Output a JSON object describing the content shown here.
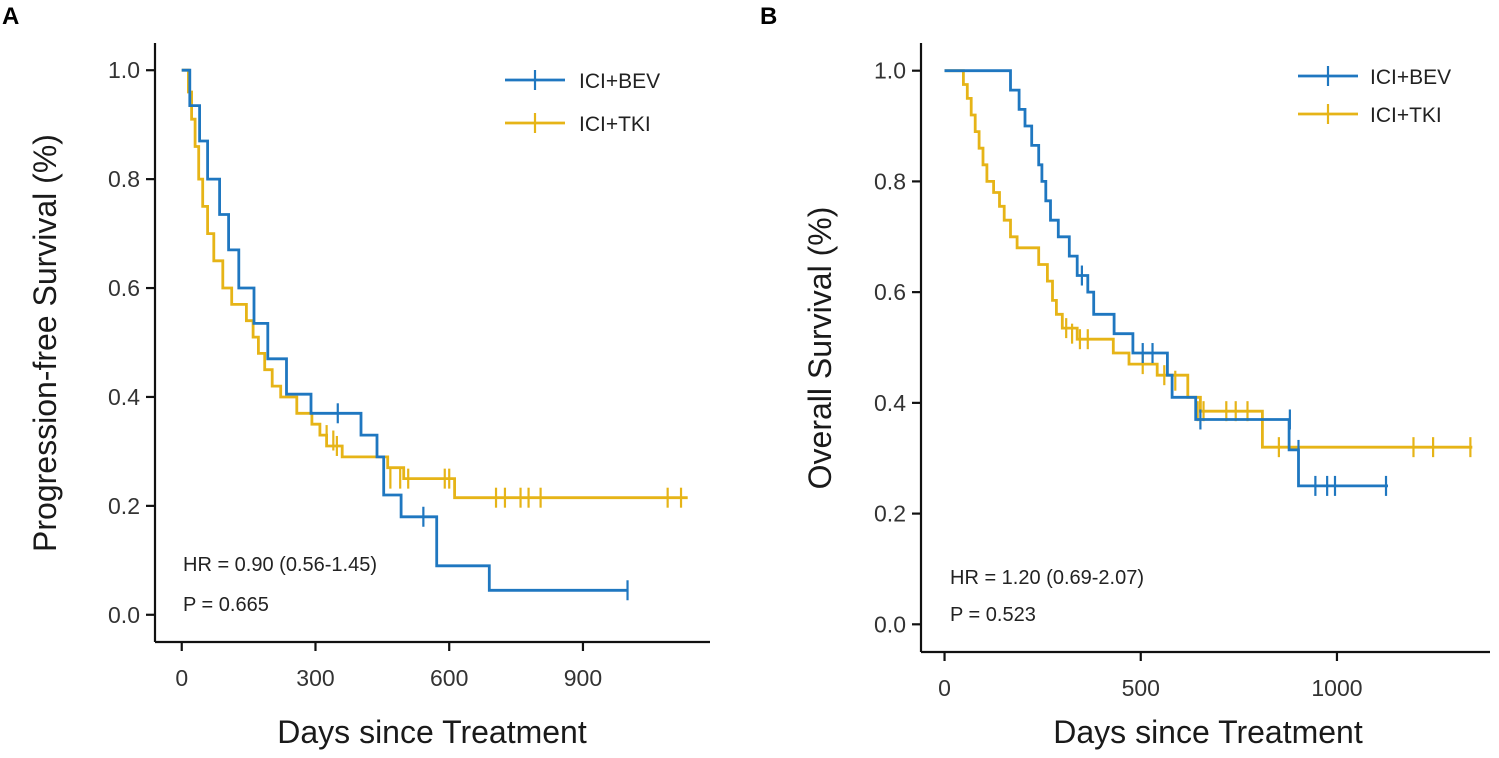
{
  "colors": {
    "bev": "#1f77c0",
    "tki": "#e6b417",
    "axis": "#111111"
  },
  "chart_data": [
    {
      "type": "line",
      "panel_label": "A",
      "title": "",
      "xlabel": "Days since Treatment",
      "ylabel": "Progression-free Survival (%)",
      "xlim": [
        -60,
        1185
      ],
      "ylim": [
        -0.05,
        1.05
      ],
      "xticks": [
        0,
        300,
        600,
        900
      ],
      "xtick_labels": [
        "0",
        "300",
        "600",
        "900"
      ],
      "yticks": [
        0.0,
        0.2,
        0.4,
        0.6,
        0.8,
        1.0
      ],
      "ytick_labels": [
        "0.0",
        "0.2",
        "0.4",
        "0.6",
        "0.8",
        "1.0"
      ],
      "legend_position": "top-right",
      "annotations": [
        "HR = 0.90 (0.56-1.45)",
        "P = 0.665"
      ],
      "series": [
        {
          "name": "ICI+BEV",
          "color": "#1f77c0",
          "steps": [
            [
              0,
              1.0
            ],
            [
              18,
              0.935
            ],
            [
              40,
              0.87
            ],
            [
              58,
              0.8
            ],
            [
              85,
              0.735
            ],
            [
              105,
              0.67
            ],
            [
              128,
              0.6
            ],
            [
              162,
              0.535
            ],
            [
              193,
              0.47
            ],
            [
              235,
              0.405
            ],
            [
              290,
              0.37
            ],
            [
              402,
              0.33
            ],
            [
              438,
              0.29
            ],
            [
              453,
              0.22
            ],
            [
              492,
              0.18
            ],
            [
              572,
              0.09
            ],
            [
              690,
              0.045
            ],
            [
              1000,
              0.045
            ]
          ],
          "censored": [
            [
              350,
              0.37
            ],
            [
              542,
              0.18
            ],
            [
              1000,
              0.045
            ]
          ]
        },
        {
          "name": "ICI+TKI",
          "color": "#e6b417",
          "steps": [
            [
              0,
              1.0
            ],
            [
              15,
              0.96
            ],
            [
              22,
              0.91
            ],
            [
              30,
              0.86
            ],
            [
              38,
              0.8
            ],
            [
              47,
              0.75
            ],
            [
              58,
              0.7
            ],
            [
              72,
              0.65
            ],
            [
              92,
              0.6
            ],
            [
              112,
              0.57
            ],
            [
              145,
              0.54
            ],
            [
              160,
              0.51
            ],
            [
              172,
              0.48
            ],
            [
              186,
              0.45
            ],
            [
              203,
              0.42
            ],
            [
              222,
              0.4
            ],
            [
              258,
              0.37
            ],
            [
              292,
              0.35
            ],
            [
              310,
              0.33
            ],
            [
              325,
              0.31
            ],
            [
              360,
              0.29
            ],
            [
              462,
              0.27
            ],
            [
              498,
              0.25
            ],
            [
              612,
              0.215
            ],
            [
              1135,
              0.215
            ]
          ],
          "censored": [
            [
              325,
              0.33
            ],
            [
              340,
              0.32
            ],
            [
              348,
              0.31
            ],
            [
              468,
              0.25
            ],
            [
              490,
              0.25
            ],
            [
              508,
              0.25
            ],
            [
              590,
              0.25
            ],
            [
              600,
              0.25
            ],
            [
              705,
              0.215
            ],
            [
              725,
              0.215
            ],
            [
              760,
              0.215
            ],
            [
              778,
              0.215
            ],
            [
              805,
              0.215
            ],
            [
              1090,
              0.215
            ],
            [
              1120,
              0.215
            ]
          ]
        }
      ]
    },
    {
      "type": "line",
      "panel_label": "B",
      "title": "",
      "xlabel": "Days since Treatment",
      "ylabel": "Overall Survival (%)",
      "xlim": [
        -60,
        1390
      ],
      "ylim": [
        -0.05,
        1.05
      ],
      "xticks": [
        0,
        500,
        1000
      ],
      "xtick_labels": [
        "0",
        "500",
        "1000"
      ],
      "yticks": [
        0.0,
        0.2,
        0.4,
        0.6,
        0.8,
        1.0
      ],
      "ytick_labels": [
        "0.0",
        "0.2",
        "0.4",
        "0.6",
        "0.8",
        "1.0"
      ],
      "legend_position": "top-right",
      "annotations": [
        "HR = 1.20 (0.69-2.07)",
        "P = 0.523"
      ],
      "series": [
        {
          "name": "ICI+BEV",
          "color": "#1f77c0",
          "steps": [
            [
              0,
              1.0
            ],
            [
              168,
              0.965
            ],
            [
              190,
              0.93
            ],
            [
              205,
              0.9
            ],
            [
              222,
              0.865
            ],
            [
              240,
              0.83
            ],
            [
              248,
              0.8
            ],
            [
              258,
              0.765
            ],
            [
              270,
              0.73
            ],
            [
              290,
              0.7
            ],
            [
              318,
              0.665
            ],
            [
              338,
              0.63
            ],
            [
              365,
              0.6
            ],
            [
              380,
              0.56
            ],
            [
              432,
              0.525
            ],
            [
              480,
              0.49
            ],
            [
              568,
              0.45
            ],
            [
              580,
              0.41
            ],
            [
              640,
              0.37
            ],
            [
              878,
              0.315
            ],
            [
              902,
              0.25
            ],
            [
              1130,
              0.25
            ]
          ],
          "censored": [
            [
              350,
              0.63
            ],
            [
              505,
              0.49
            ],
            [
              530,
              0.49
            ],
            [
              652,
              0.37
            ],
            [
              880,
              0.37
            ],
            [
              902,
              0.315
            ],
            [
              945,
              0.25
            ],
            [
              975,
              0.25
            ],
            [
              995,
              0.25
            ],
            [
              1125,
              0.25
            ]
          ]
        },
        {
          "name": "ICI+TKI",
          "color": "#e6b417",
          "steps": [
            [
              0,
              1.0
            ],
            [
              48,
              0.975
            ],
            [
              58,
              0.95
            ],
            [
              68,
              0.92
            ],
            [
              78,
              0.89
            ],
            [
              88,
              0.86
            ],
            [
              98,
              0.83
            ],
            [
              108,
              0.8
            ],
            [
              125,
              0.78
            ],
            [
              140,
              0.755
            ],
            [
              152,
              0.73
            ],
            [
              168,
              0.7
            ],
            [
              185,
              0.68
            ],
            [
              240,
              0.65
            ],
            [
              262,
              0.62
            ],
            [
              275,
              0.585
            ],
            [
              285,
              0.56
            ],
            [
              300,
              0.535
            ],
            [
              338,
              0.515
            ],
            [
              430,
              0.49
            ],
            [
              470,
              0.47
            ],
            [
              542,
              0.45
            ],
            [
              620,
              0.41
            ],
            [
              652,
              0.385
            ],
            [
              810,
              0.32
            ],
            [
              1345,
              0.32
            ]
          ],
          "censored": [
            [
              310,
              0.535
            ],
            [
              325,
              0.525
            ],
            [
              345,
              0.515
            ],
            [
              365,
              0.515
            ],
            [
              505,
              0.47
            ],
            [
              560,
              0.45
            ],
            [
              588,
              0.44
            ],
            [
              645,
              0.385
            ],
            [
              660,
              0.385
            ],
            [
              718,
              0.385
            ],
            [
              742,
              0.385
            ],
            [
              772,
              0.385
            ],
            [
              852,
              0.32
            ],
            [
              1195,
              0.32
            ],
            [
              1245,
              0.32
            ],
            [
              1340,
              0.32
            ]
          ]
        }
      ]
    }
  ]
}
